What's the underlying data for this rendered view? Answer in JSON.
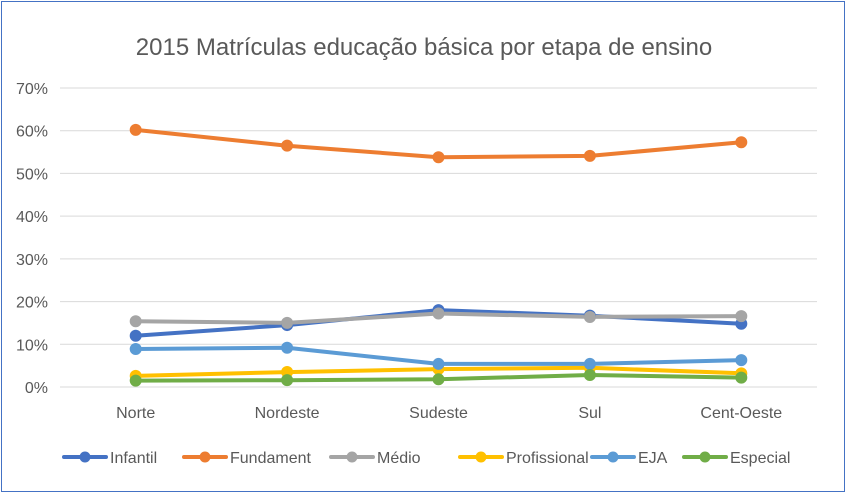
{
  "chart_data": {
    "type": "line",
    "title": "2015 Matrículas educação básica por etapa de ensino",
    "xlabel": "",
    "ylabel": "",
    "categories": [
      "Norte",
      "Nordeste",
      "Sudeste",
      "Sul",
      "Cent-Oeste"
    ],
    "ylim": [
      0,
      70
    ],
    "yticks": [
      "0%",
      "10%",
      "20%",
      "30%",
      "40%",
      "50%",
      "60%",
      "70%"
    ],
    "grid": true,
    "legend_position": "bottom",
    "series": [
      {
        "name": "Infantil",
        "color": "#4472c4",
        "values": [
          12.0,
          14.5,
          18.0,
          16.7,
          14.8
        ]
      },
      {
        "name": "Fundament",
        "color": "#ed7d31",
        "values": [
          60.2,
          56.5,
          53.8,
          54.1,
          57.3
        ]
      },
      {
        "name": "Médio",
        "color": "#a5a5a5",
        "values": [
          15.4,
          15.0,
          17.2,
          16.4,
          16.6
        ]
      },
      {
        "name": "Profissional",
        "color": "#ffc000",
        "values": [
          2.6,
          3.5,
          4.2,
          4.5,
          3.2
        ]
      },
      {
        "name": "EJA",
        "color": "#5b9bd5",
        "values": [
          8.9,
          9.2,
          5.4,
          5.4,
          6.3
        ]
      },
      {
        "name": "Especial",
        "color": "#70ad47",
        "values": [
          1.5,
          1.6,
          1.8,
          2.8,
          2.2
        ]
      }
    ]
  }
}
